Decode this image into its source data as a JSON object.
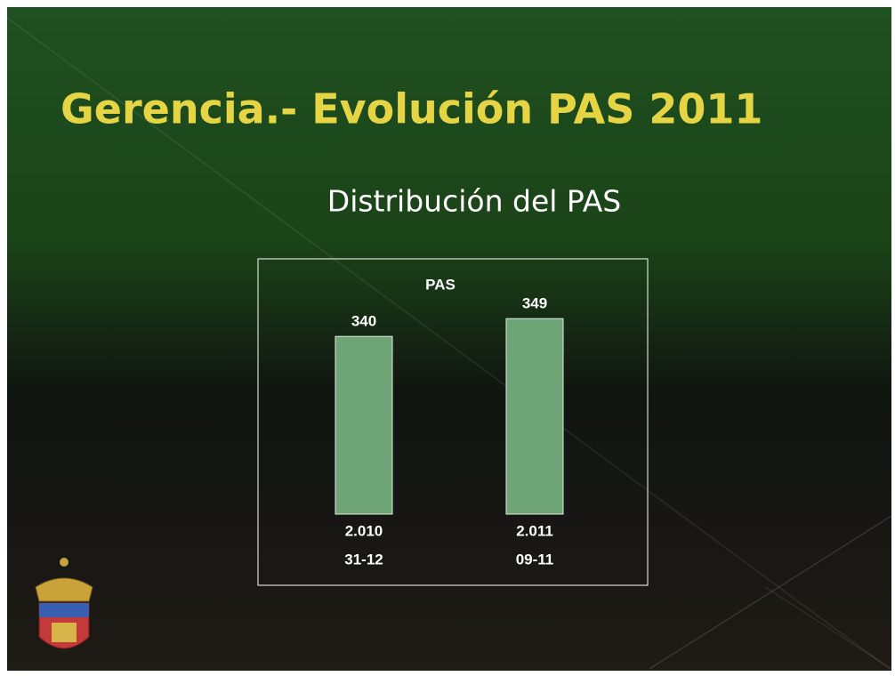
{
  "chart_data": {
    "type": "bar",
    "title": "Gerencia.- Evolución PAS 2011",
    "subtitle": "Distribución del PAS",
    "chart_title": "PAS",
    "categories": [
      [
        "2.010",
        "31-12"
      ],
      [
        "2.011",
        "09-11"
      ]
    ],
    "values": [
      340,
      349
    ],
    "color": "#6ea476",
    "ylim": [
      250,
      350
    ]
  }
}
